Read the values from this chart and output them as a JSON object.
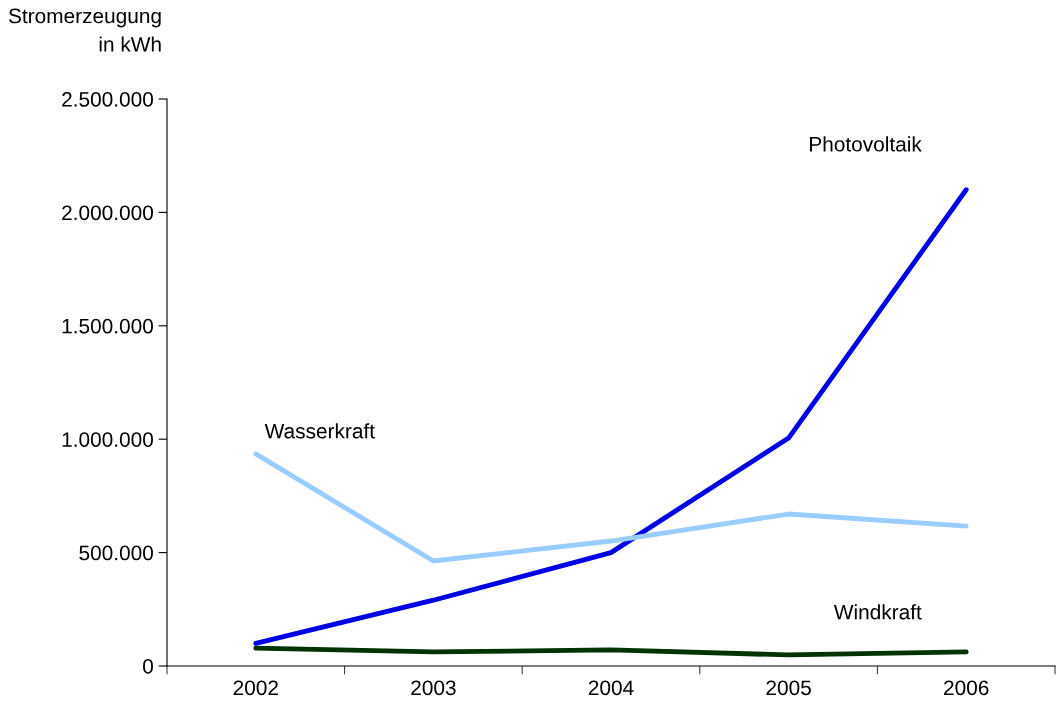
{
  "chart_data": {
    "type": "line",
    "ylabel": "Stromerzeugung\nin kWh",
    "categories": [
      "2002",
      "2003",
      "2004",
      "2005",
      "2006"
    ],
    "series": [
      {
        "name": "Photovoltaik",
        "color": "#0000e6",
        "values": [
          100000,
          290000,
          500000,
          1005000,
          2100000
        ]
      },
      {
        "name": "Wasserkraft",
        "color": "#99ccff",
        "values": [
          935000,
          463000,
          551000,
          670000,
          617000
        ]
      },
      {
        "name": "Windkraft",
        "color": "#003300",
        "values": [
          79000,
          62000,
          71000,
          49000,
          62000
        ]
      }
    ],
    "ylim": [
      0,
      2500000
    ],
    "yticks": [
      {
        "value": 0,
        "label": "0"
      },
      {
        "value": 500000,
        "label": "500.000"
      },
      {
        "value": 1000000,
        "label": "1.000.000"
      },
      {
        "value": 1500000,
        "label": "1.500.000"
      },
      {
        "value": 2000000,
        "label": "2.000.000"
      },
      {
        "value": 2500000,
        "label": "2.500.000"
      }
    ],
    "grid": false,
    "legend": false,
    "marker": "none",
    "line_style": "solid"
  }
}
